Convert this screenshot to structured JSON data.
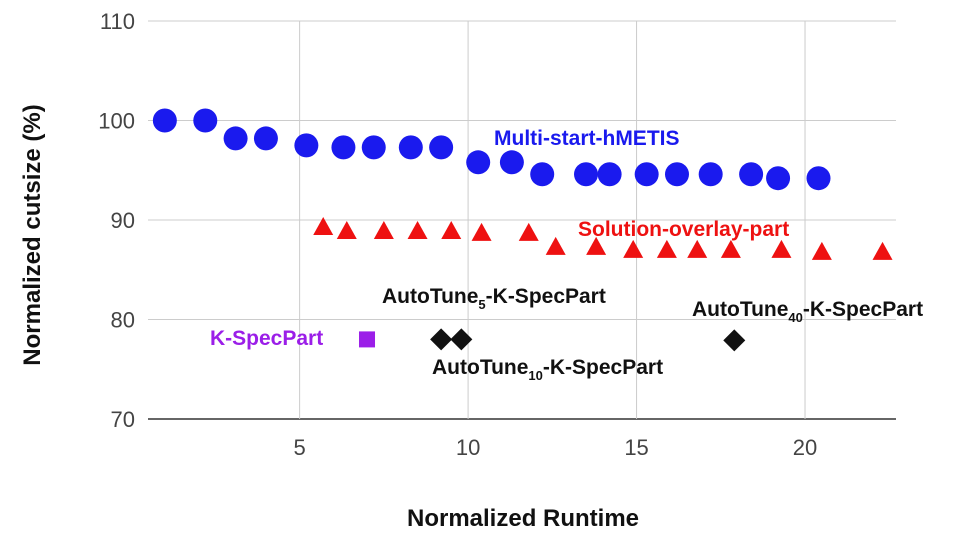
{
  "chart_data": {
    "type": "scatter",
    "xlabel": "Normalized Runtime",
    "ylabel": "Normalized cutsize (%)",
    "xlim": [
      0.5,
      22.7
    ],
    "ylim": [
      70,
      110
    ],
    "x_ticks": [
      5,
      10,
      15,
      20
    ],
    "y_ticks": [
      70,
      80,
      90,
      100,
      110
    ],
    "grid": true,
    "series": [
      {
        "name": "Multi-start-hMETIS",
        "color": "#1a1aee",
        "marker": "circle",
        "x": [
          1.0,
          2.2,
          3.1,
          4.0,
          5.2,
          6.3,
          7.2,
          8.3,
          9.2,
          10.3,
          11.3,
          12.2,
          13.5,
          14.2,
          15.3,
          16.2,
          17.2,
          18.4,
          19.2,
          20.4
        ],
        "y": [
          100.0,
          100.0,
          98.2,
          98.2,
          97.5,
          97.3,
          97.3,
          97.3,
          97.3,
          95.8,
          95.8,
          94.6,
          94.6,
          94.6,
          94.6,
          94.6,
          94.6,
          94.6,
          94.2,
          94.2
        ]
      },
      {
        "name": "Solution-overlay-part",
        "color": "#ee1111",
        "marker": "triangle",
        "x": [
          5.7,
          6.4,
          7.5,
          8.5,
          9.5,
          10.4,
          11.8,
          12.6,
          13.8,
          14.9,
          15.9,
          16.8,
          17.8,
          19.3,
          20.5,
          22.3
        ],
        "y": [
          89.3,
          88.9,
          88.9,
          88.9,
          88.9,
          88.7,
          88.7,
          87.3,
          87.3,
          87.0,
          87.0,
          87.0,
          87.0,
          87.0,
          86.8,
          86.8
        ]
      },
      {
        "name": "K-SpecPart",
        "color": "#9b1ee8",
        "marker": "square",
        "x": [
          7.0
        ],
        "y": [
          78.0
        ]
      },
      {
        "name": "AutoTune-K-SpecPart",
        "color": "#111111",
        "marker": "diamond",
        "x": [
          9.2,
          9.8,
          17.9
        ],
        "y": [
          78.0,
          78.0,
          77.9
        ]
      }
    ],
    "annotations": [
      {
        "base": "AutoTune",
        "sub": "5",
        "rest": "-K-SpecPart"
      },
      {
        "base": "AutoTune",
        "sub": "10",
        "rest": "-K-SpecPart"
      },
      {
        "base": "AutoTune",
        "sub": "40",
        "rest": "-K-SpecPart"
      }
    ]
  }
}
